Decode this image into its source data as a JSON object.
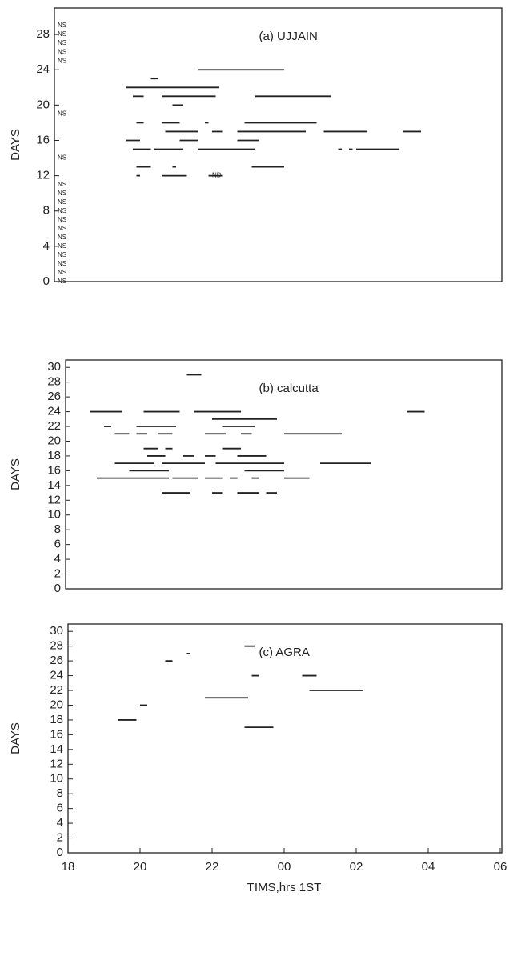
{
  "chart_data": [
    {
      "type": "segment",
      "title": "(a) UJJAIN",
      "ylabel": "DAYS",
      "color": "#222222",
      "xlim": [
        18,
        30
      ],
      "ylim": [
        0,
        31
      ],
      "yticks": [
        0,
        4,
        8,
        12,
        16,
        20,
        24,
        28
      ],
      "segments": [
        {
          "y": 24,
          "x": [
            21.6,
            24.0
          ]
        },
        {
          "y": 23,
          "x": [
            20.3,
            20.5
          ]
        },
        {
          "y": 22,
          "x": [
            19.6,
            22.2
          ]
        },
        {
          "y": 21,
          "x": [
            19.8,
            20.1
          ]
        },
        {
          "y": 21,
          "x": [
            20.6,
            22.1
          ]
        },
        {
          "y": 21,
          "x": [
            23.2,
            25.3
          ]
        },
        {
          "y": 20,
          "x": [
            20.9,
            21.2
          ]
        },
        {
          "y": 18,
          "x": [
            19.9,
            20.1
          ]
        },
        {
          "y": 18,
          "x": [
            20.6,
            21.1
          ]
        },
        {
          "y": 18,
          "x": [
            21.8,
            21.9
          ]
        },
        {
          "y": 18,
          "x": [
            22.9,
            24.9
          ]
        },
        {
          "y": 17,
          "x": [
            20.7,
            21.6
          ]
        },
        {
          "y": 17,
          "x": [
            22.0,
            22.3
          ]
        },
        {
          "y": 17,
          "x": [
            22.7,
            24.6
          ]
        },
        {
          "y": 17,
          "x": [
            25.1,
            26.3
          ]
        },
        {
          "y": 17,
          "x": [
            27.3,
            27.8
          ]
        },
        {
          "y": 16,
          "x": [
            19.6,
            20.0
          ]
        },
        {
          "y": 16,
          "x": [
            21.1,
            21.6
          ]
        },
        {
          "y": 16,
          "x": [
            22.7,
            23.3
          ]
        },
        {
          "y": 15,
          "x": [
            19.8,
            20.3
          ]
        },
        {
          "y": 15,
          "x": [
            20.4,
            21.2
          ]
        },
        {
          "y": 15,
          "x": [
            21.6,
            22.3
          ]
        },
        {
          "y": 15,
          "x": [
            22.3,
            23.2
          ]
        },
        {
          "y": 15,
          "x": [
            25.5,
            25.6
          ]
        },
        {
          "y": 15,
          "x": [
            25.8,
            25.9
          ]
        },
        {
          "y": 15,
          "x": [
            26.0,
            27.2
          ]
        },
        {
          "y": 13,
          "x": [
            19.9,
            20.3
          ]
        },
        {
          "y": 13,
          "x": [
            20.9,
            21.0
          ]
        },
        {
          "y": 13,
          "x": [
            23.1,
            24.0
          ]
        },
        {
          "y": 12,
          "x": [
            19.9,
            20.0
          ]
        },
        {
          "y": 12,
          "x": [
            20.6,
            21.3
          ]
        },
        {
          "y": 12,
          "x": [
            21.9,
            22.3
          ]
        }
      ],
      "annotations": [
        {
          "text": "NS",
          "y": 29
        },
        {
          "text": "NS",
          "y": 28
        },
        {
          "text": "NS",
          "y": 27
        },
        {
          "text": "NS",
          "y": 26
        },
        {
          "text": "NS",
          "y": 25
        },
        {
          "text": "NS",
          "y": 19
        },
        {
          "text": "NS",
          "y": 14
        },
        {
          "text": "NS",
          "y": 11
        },
        {
          "text": "NS",
          "y": 10
        },
        {
          "text": "NS",
          "y": 9
        },
        {
          "text": "NS",
          "y": 8
        },
        {
          "text": "NS",
          "y": 7
        },
        {
          "text": "NS",
          "y": 6
        },
        {
          "text": "NS",
          "y": 5
        },
        {
          "text": "NS",
          "y": 4
        },
        {
          "text": "NS",
          "y": 3
        },
        {
          "text": "NS",
          "y": 2
        },
        {
          "text": "NS",
          "y": 1
        },
        {
          "text": "NS",
          "y": 0
        },
        {
          "text": "ND",
          "x": 22.0,
          "y": 12
        }
      ]
    },
    {
      "type": "segment",
      "title": "(b) calcutta",
      "ylabel": "DAYS",
      "color": "#222222",
      "xlim": [
        18,
        30
      ],
      "ylim": [
        0,
        31
      ],
      "yticks": [
        0,
        2,
        4,
        6,
        8,
        10,
        12,
        14,
        16,
        18,
        20,
        22,
        24,
        26,
        28,
        30
      ],
      "segments": [
        {
          "y": 29,
          "x": [
            21.3,
            21.7
          ]
        },
        {
          "y": 24,
          "x": [
            18.6,
            19.5
          ]
        },
        {
          "y": 24,
          "x": [
            20.1,
            21.1
          ]
        },
        {
          "y": 24,
          "x": [
            21.5,
            22.8
          ]
        },
        {
          "y": 24,
          "x": [
            27.4,
            27.9
          ]
        },
        {
          "y": 23,
          "x": [
            22.0,
            23.8
          ]
        },
        {
          "y": 22,
          "x": [
            19.0,
            19.2
          ]
        },
        {
          "y": 22,
          "x": [
            19.9,
            21.0
          ]
        },
        {
          "y": 22,
          "x": [
            22.3,
            23.2
          ]
        },
        {
          "y": 21,
          "x": [
            19.3,
            19.7
          ]
        },
        {
          "y": 21,
          "x": [
            19.9,
            20.2
          ]
        },
        {
          "y": 21,
          "x": [
            20.5,
            20.9
          ]
        },
        {
          "y": 21,
          "x": [
            21.8,
            22.4
          ]
        },
        {
          "y": 21,
          "x": [
            22.8,
            23.1
          ]
        },
        {
          "y": 21,
          "x": [
            24.0,
            25.6
          ]
        },
        {
          "y": 19,
          "x": [
            20.1,
            20.5
          ]
        },
        {
          "y": 19,
          "x": [
            20.7,
            20.9
          ]
        },
        {
          "y": 19,
          "x": [
            22.3,
            22.8
          ]
        },
        {
          "y": 18,
          "x": [
            20.2,
            20.7
          ]
        },
        {
          "y": 18,
          "x": [
            21.2,
            21.5
          ]
        },
        {
          "y": 18,
          "x": [
            21.8,
            22.1
          ]
        },
        {
          "y": 18,
          "x": [
            22.7,
            23.5
          ]
        },
        {
          "y": 17,
          "x": [
            19.3,
            20.4
          ]
        },
        {
          "y": 17,
          "x": [
            20.6,
            21.8
          ]
        },
        {
          "y": 17,
          "x": [
            22.1,
            24.0
          ]
        },
        {
          "y": 17,
          "x": [
            25.0,
            26.4
          ]
        },
        {
          "y": 16,
          "x": [
            19.7,
            20.8
          ]
        },
        {
          "y": 16,
          "x": [
            22.9,
            24.0
          ]
        },
        {
          "y": 15,
          "x": [
            18.8,
            20.8
          ]
        },
        {
          "y": 15,
          "x": [
            20.9,
            21.6
          ]
        },
        {
          "y": 15,
          "x": [
            21.8,
            22.3
          ]
        },
        {
          "y": 15,
          "x": [
            22.5,
            22.7
          ]
        },
        {
          "y": 15,
          "x": [
            23.1,
            23.3
          ]
        },
        {
          "y": 15,
          "x": [
            24.0,
            24.7
          ]
        },
        {
          "y": 13,
          "x": [
            20.6,
            21.4
          ]
        },
        {
          "y": 13,
          "x": [
            22.0,
            22.3
          ]
        },
        {
          "y": 13,
          "x": [
            22.7,
            23.3
          ]
        },
        {
          "y": 13,
          "x": [
            23.5,
            23.8
          ]
        }
      ]
    },
    {
      "type": "segment",
      "title": "(c) AGRA",
      "ylabel": "DAYS",
      "xlabel": "TIMS,hrs 1ST",
      "color": "#222222",
      "xlim": [
        18,
        30
      ],
      "ylim": [
        0,
        31
      ],
      "yticks": [
        0,
        2,
        4,
        6,
        8,
        10,
        12,
        14,
        16,
        18,
        20,
        22,
        24,
        26,
        28,
        30
      ],
      "xticks": [
        18,
        20,
        22,
        {
          "value": 24,
          "label": "00"
        },
        {
          "value": 26,
          "label": "02"
        },
        {
          "value": 28,
          "label": "04"
        },
        {
          "value": 30,
          "label": "06"
        }
      ],
      "segments": [
        {
          "y": 28,
          "x": [
            22.9,
            23.2
          ]
        },
        {
          "y": 27,
          "x": [
            21.3,
            21.4
          ]
        },
        {
          "y": 26,
          "x": [
            20.7,
            20.9
          ]
        },
        {
          "y": 24,
          "x": [
            23.1,
            23.3
          ]
        },
        {
          "y": 24,
          "x": [
            24.5,
            24.9
          ]
        },
        {
          "y": 22,
          "x": [
            24.7,
            26.2
          ]
        },
        {
          "y": 21,
          "x": [
            21.8,
            23.0
          ]
        },
        {
          "y": 20,
          "x": [
            20.0,
            20.2
          ]
        },
        {
          "y": 18,
          "x": [
            19.4,
            19.9
          ]
        },
        {
          "y": 17,
          "x": [
            22.9,
            23.7
          ]
        }
      ]
    }
  ]
}
